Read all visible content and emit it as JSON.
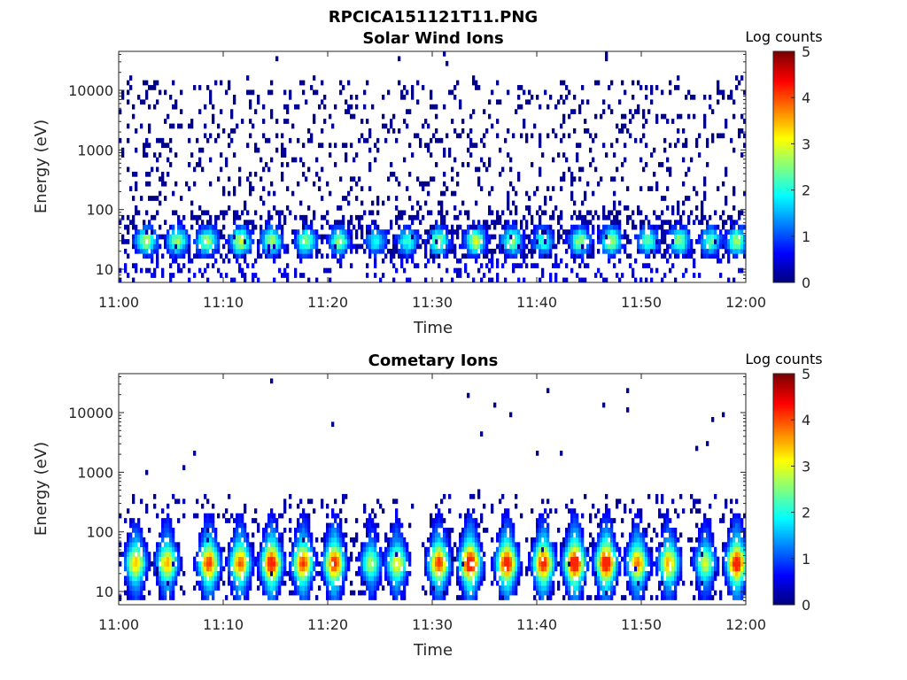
{
  "figure_title": "RPCICA151121T11.PNG",
  "chart_data": [
    {
      "type": "heatmap",
      "title": "Solar Wind Ions",
      "xlabel": "Time",
      "ylabel": "Energy (eV)",
      "x_ticks": [
        "11:00",
        "11:10",
        "11:20",
        "11:30",
        "11:40",
        "11:50",
        "12:00"
      ],
      "x_range": [
        "11:00",
        "12:00"
      ],
      "y_scale": "log",
      "y_ticks": [
        10,
        100,
        1000,
        10000
      ],
      "y_tick_labels": [
        "10",
        "100",
        "1000",
        "10000"
      ],
      "y_range": [
        6,
        45000
      ],
      "colorbar": {
        "label": "Log counts",
        "range": [
          0,
          5
        ],
        "ticks": [
          "0",
          "1",
          "2",
          "3",
          "4",
          "5"
        ],
        "colormap": "jet"
      },
      "peaks": [
        {
          "t": 2.5,
          "level": 2.6
        },
        {
          "t": 5.5,
          "level": 2.4
        },
        {
          "t": 8.3,
          "level": 2.5
        },
        {
          "t": 11.5,
          "level": 2.7
        },
        {
          "t": 14.5,
          "level": 2.6
        },
        {
          "t": 17.8,
          "level": 2.4
        },
        {
          "t": 21.0,
          "level": 2.3
        },
        {
          "t": 24.5,
          "level": 1.8
        },
        {
          "t": 27.5,
          "level": 2.0
        },
        {
          "t": 30.5,
          "level": 2.4
        },
        {
          "t": 34.0,
          "level": 2.7
        },
        {
          "t": 37.5,
          "level": 2.4
        },
        {
          "t": 40.5,
          "level": 2.0
        },
        {
          "t": 44.0,
          "level": 2.4
        },
        {
          "t": 47.0,
          "level": 2.5
        },
        {
          "t": 50.5,
          "level": 2.2
        },
        {
          "t": 53.5,
          "level": 2.4
        },
        {
          "t": 56.5,
          "level": 2.2
        },
        {
          "t": 59.0,
          "level": 2.6
        }
      ]
    },
    {
      "type": "heatmap",
      "title": "Cometary Ions",
      "xlabel": "Time",
      "ylabel": "Energy (eV)",
      "x_ticks": [
        "11:00",
        "11:10",
        "11:20",
        "11:30",
        "11:40",
        "11:50",
        "12:00"
      ],
      "x_range": [
        "11:00",
        "12:00"
      ],
      "y_scale": "log",
      "y_ticks": [
        10,
        100,
        1000,
        10000
      ],
      "y_tick_labels": [
        "10",
        "100",
        "1000",
        "10000"
      ],
      "y_range": [
        6,
        45000
      ],
      "colorbar": {
        "label": "Log counts",
        "range": [
          0,
          5
        ],
        "ticks": [
          "0",
          "1",
          "2",
          "3",
          "4",
          "5"
        ],
        "colormap": "jet"
      },
      "peaks": [
        {
          "t": 1.5,
          "level": 2.8
        },
        {
          "t": 4.5,
          "level": 2.9
        },
        {
          "t": 8.5,
          "level": 3.4
        },
        {
          "t": 11.5,
          "level": 3.2
        },
        {
          "t": 14.5,
          "level": 3.7
        },
        {
          "t": 17.5,
          "level": 3.4
        },
        {
          "t": 20.5,
          "level": 3.5
        },
        {
          "t": 24.0,
          "level": 2.2
        },
        {
          "t": 26.5,
          "level": 2.6
        },
        {
          "t": 30.5,
          "level": 3.4
        },
        {
          "t": 33.5,
          "level": 3.9
        },
        {
          "t": 37.0,
          "level": 3.7
        },
        {
          "t": 40.5,
          "level": 3.6
        },
        {
          "t": 43.5,
          "level": 3.9
        },
        {
          "t": 46.5,
          "level": 3.9
        },
        {
          "t": 49.5,
          "level": 3.1
        },
        {
          "t": 52.5,
          "level": 2.9
        },
        {
          "t": 56.0,
          "level": 2.4
        },
        {
          "t": 59.0,
          "level": 3.7
        }
      ]
    }
  ]
}
